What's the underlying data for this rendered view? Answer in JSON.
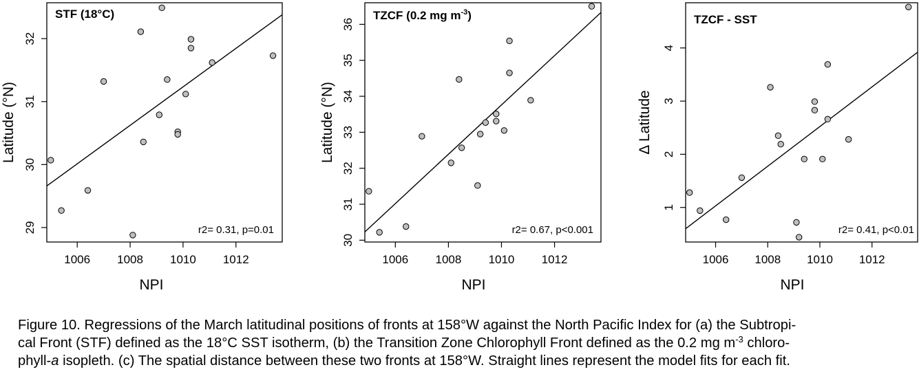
{
  "chart_data": [
    {
      "type": "scatter",
      "title": "STF (18°C)",
      "xlabel": "NPI",
      "ylabel": "Latitude (°N)",
      "xlim": [
        1004.85,
        1013.75
      ],
      "ylim": [
        28.77,
        32.57
      ],
      "xticks": [
        "1006",
        "1008",
        "1010",
        "1012"
      ],
      "yticks": [
        "29",
        "30",
        "31",
        "32"
      ],
      "points": [
        {
          "x": 1005.0,
          "y": 30.07
        },
        {
          "x": 1005.4,
          "y": 29.27
        },
        {
          "x": 1006.4,
          "y": 29.59
        },
        {
          "x": 1007.0,
          "y": 31.32
        },
        {
          "x": 1008.1,
          "y": 28.88
        },
        {
          "x": 1008.4,
          "y": 32.11
        },
        {
          "x": 1008.5,
          "y": 30.36
        },
        {
          "x": 1009.1,
          "y": 30.79
        },
        {
          "x": 1009.2,
          "y": 32.49
        },
        {
          "x": 1009.4,
          "y": 31.35
        },
        {
          "x": 1009.8,
          "y": 30.52
        },
        {
          "x": 1009.8,
          "y": 30.48
        },
        {
          "x": 1010.1,
          "y": 31.12
        },
        {
          "x": 1010.3,
          "y": 31.99
        },
        {
          "x": 1010.3,
          "y": 31.85
        },
        {
          "x": 1011.1,
          "y": 31.62
        },
        {
          "x": 1013.4,
          "y": 31.73
        }
      ],
      "fit": {
        "x": [
          1004.85,
          1013.75
        ],
        "y": [
          29.66,
          32.38
        ]
      },
      "annotation": "r2= 0.31, p=0.01"
    },
    {
      "type": "scatter",
      "title_main": "TZCF (0.2 mg m",
      "title_sup": "-3",
      "title_end": ")",
      "xlabel": "NPI",
      "ylabel": "Latitude (°N)",
      "xlim": [
        1004.85,
        1013.75
      ],
      "ylim": [
        29.95,
        36.6
      ],
      "xticks": [
        "1006",
        "1008",
        "1010",
        "1012"
      ],
      "yticks": [
        "30",
        "31",
        "32",
        "33",
        "34",
        "35",
        "36"
      ],
      "points": [
        {
          "x": 1005.0,
          "y": 31.36
        },
        {
          "x": 1005.4,
          "y": 30.22
        },
        {
          "x": 1006.4,
          "y": 30.38
        },
        {
          "x": 1007.0,
          "y": 32.89
        },
        {
          "x": 1008.1,
          "y": 32.15
        },
        {
          "x": 1008.4,
          "y": 34.47
        },
        {
          "x": 1008.5,
          "y": 32.57
        },
        {
          "x": 1009.1,
          "y": 31.52
        },
        {
          "x": 1009.2,
          "y": 32.95
        },
        {
          "x": 1009.4,
          "y": 33.27
        },
        {
          "x": 1009.8,
          "y": 33.51
        },
        {
          "x": 1009.8,
          "y": 33.31
        },
        {
          "x": 1010.1,
          "y": 33.05
        },
        {
          "x": 1010.3,
          "y": 35.54
        },
        {
          "x": 1010.3,
          "y": 34.65
        },
        {
          "x": 1011.1,
          "y": 33.89
        },
        {
          "x": 1013.4,
          "y": 36.5
        }
      ],
      "fit": {
        "x": [
          1004.85,
          1013.75
        ],
        "y": [
          30.23,
          36.33
        ]
      },
      "annotation": "r2= 0.67, p<0.001"
    },
    {
      "type": "scatter",
      "title": "TZCF - SST",
      "xlabel": "NPI",
      "ylabel": "Δ Latitude",
      "xlim": [
        1004.85,
        1013.75
      ],
      "ylim": [
        0.35,
        4.85
      ],
      "xticks": [
        "1006",
        "1008",
        "1010",
        "1012"
      ],
      "yticks": [
        "1",
        "2",
        "3",
        "4"
      ],
      "points": [
        {
          "x": 1005.0,
          "y": 1.28
        },
        {
          "x": 1005.4,
          "y": 0.94
        },
        {
          "x": 1006.4,
          "y": 0.77
        },
        {
          "x": 1007.0,
          "y": 1.56
        },
        {
          "x": 1008.1,
          "y": 3.26
        },
        {
          "x": 1008.4,
          "y": 2.35
        },
        {
          "x": 1008.5,
          "y": 2.19
        },
        {
          "x": 1009.1,
          "y": 0.72
        },
        {
          "x": 1009.2,
          "y": 0.44
        },
        {
          "x": 1009.4,
          "y": 1.91
        },
        {
          "x": 1009.8,
          "y": 2.99
        },
        {
          "x": 1009.8,
          "y": 2.83
        },
        {
          "x": 1010.1,
          "y": 1.91
        },
        {
          "x": 1010.3,
          "y": 3.69
        },
        {
          "x": 1010.3,
          "y": 2.66
        },
        {
          "x": 1011.1,
          "y": 2.28
        },
        {
          "x": 1013.4,
          "y": 4.77
        }
      ],
      "fit": {
        "x": [
          1004.85,
          1013.75
        ],
        "y": [
          0.6,
          3.92
        ]
      },
      "annotation": "r2= 0.41, p<0.01"
    }
  ],
  "caption": {
    "line1": "Figure 10. Regressions of the March latitudinal positions of fronts at 158°W against the North Pacific Index for (a) the Subtropi-",
    "line2_a": "cal Front (STF) defined as the 18°C SST isotherm, (b) the Transition Zone Chlorophyll Front defined as the 0.2 mg m",
    "line2_sup": "-3",
    "line2_b": " chloro-",
    "line3_a": "phyll-",
    "line3_italic": "a",
    "line3_b": " isopleth. (c) The spatial distance between these two fronts at 158°W. Straight lines represent the model fits for each fit."
  },
  "colors": {
    "point_fill": "#bfbfbf",
    "point_stroke": "#000000",
    "line": "#000000",
    "background": "#ffffff"
  }
}
